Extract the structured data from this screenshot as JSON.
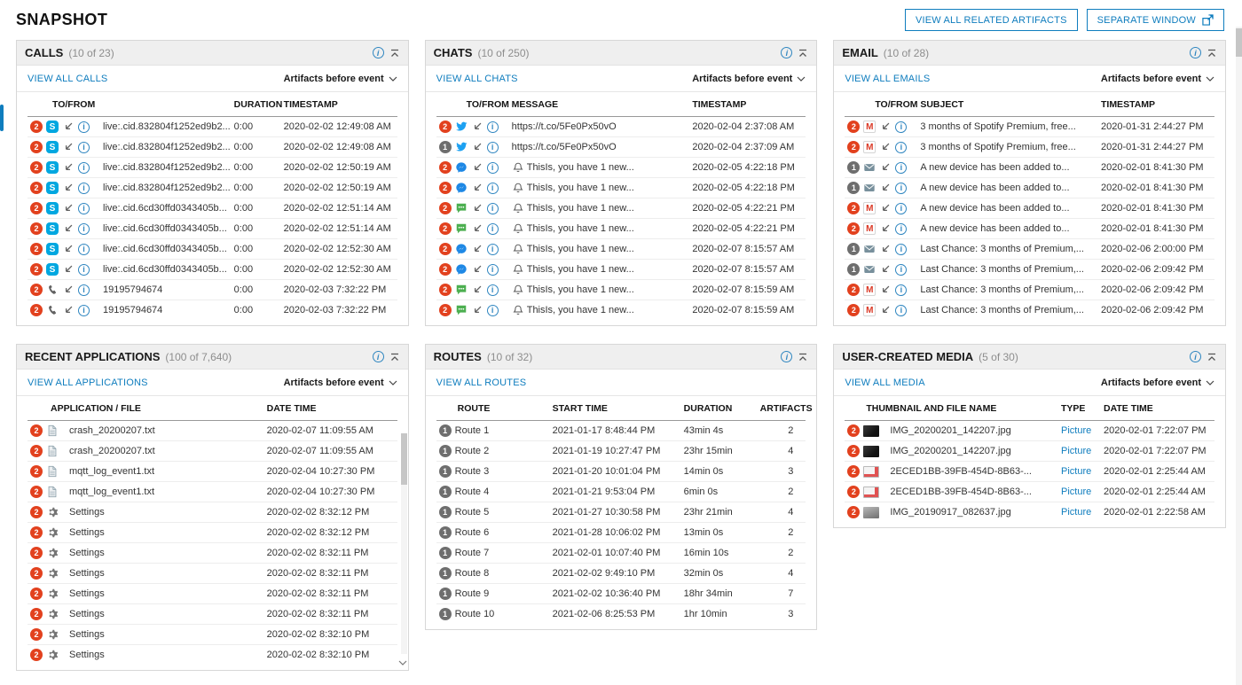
{
  "colors": {
    "accent": "#0f7dbe",
    "badge_red": "#e2411e",
    "badge_gray": "#6e6e6e",
    "link_blue": "#0f7dbe"
  },
  "icons": {
    "info": "i-in-circle",
    "collapse": "chevron-up-with-bar",
    "chevron_down": "v-chevron",
    "incoming_arrow": "arrow-down-left",
    "separate_window": "window-with-arrow",
    "bell": "bell-outline"
  },
  "page": {
    "title": "SNAPSHOT",
    "buttons": {
      "view_all_related": "VIEW ALL RELATED ARTIFACTS",
      "separate_window": "SEPARATE WINDOW"
    }
  },
  "panels": {
    "calls": {
      "title": "CALLS",
      "count": "(10 of 23)",
      "view_all": "VIEW ALL CALLS",
      "filter": "Artifacts before event",
      "columns": [
        "TO/FROM",
        "DURATION",
        "TIMESTAMP"
      ],
      "rows": [
        {
          "badge": 2,
          "badge_color": "red",
          "source": "skype",
          "to_from": "live:.cid.832804f1252ed9b2...",
          "duration": "0:00",
          "timestamp": "2020-02-02 12:49:08 AM"
        },
        {
          "badge": 2,
          "badge_color": "red",
          "source": "skype",
          "to_from": "live:.cid.832804f1252ed9b2...",
          "duration": "0:00",
          "timestamp": "2020-02-02 12:49:08 AM"
        },
        {
          "badge": 2,
          "badge_color": "red",
          "source": "skype",
          "to_from": "live:.cid.832804f1252ed9b2...",
          "duration": "0:00",
          "timestamp": "2020-02-02 12:50:19 AM"
        },
        {
          "badge": 2,
          "badge_color": "red",
          "source": "skype",
          "to_from": "live:.cid.832804f1252ed9b2...",
          "duration": "0:00",
          "timestamp": "2020-02-02 12:50:19 AM"
        },
        {
          "badge": 2,
          "badge_color": "red",
          "source": "skype",
          "to_from": "live:.cid.6cd30ffd0343405b...",
          "duration": "0:00",
          "timestamp": "2020-02-02 12:51:14 AM"
        },
        {
          "badge": 2,
          "badge_color": "red",
          "source": "skype",
          "to_from": "live:.cid.6cd30ffd0343405b...",
          "duration": "0:00",
          "timestamp": "2020-02-02 12:51:14 AM"
        },
        {
          "badge": 2,
          "badge_color": "red",
          "source": "skype",
          "to_from": "live:.cid.6cd30ffd0343405b...",
          "duration": "0:00",
          "timestamp": "2020-02-02 12:52:30 AM"
        },
        {
          "badge": 2,
          "badge_color": "red",
          "source": "skype",
          "to_from": "live:.cid.6cd30ffd0343405b...",
          "duration": "0:00",
          "timestamp": "2020-02-02 12:52:30 AM"
        },
        {
          "badge": 2,
          "badge_color": "red",
          "source": "phone",
          "to_from": "19195794674",
          "duration": "0:00",
          "timestamp": "2020-02-03 7:32:22 PM"
        },
        {
          "badge": 2,
          "badge_color": "red",
          "source": "phone",
          "to_from": "19195794674",
          "duration": "0:00",
          "timestamp": "2020-02-03 7:32:22 PM"
        }
      ]
    },
    "chats": {
      "title": "CHATS",
      "count": "(10 of 250)",
      "view_all": "VIEW ALL CHATS",
      "filter": "Artifacts before event",
      "columns": [
        "TO/FROM",
        "MESSAGE",
        "TIMESTAMP"
      ],
      "rows": [
        {
          "badge": 2,
          "badge_color": "red",
          "source": "twitter",
          "bell": false,
          "message": "https://t.co/5Fe0Px50vO",
          "timestamp": "2020-02-04 2:37:08 AM"
        },
        {
          "badge": 1,
          "badge_color": "gray",
          "source": "twitter",
          "bell": false,
          "message": "https://t.co/5Fe0Px50vO",
          "timestamp": "2020-02-04 2:37:09 AM"
        },
        {
          "badge": 2,
          "badge_color": "red",
          "source": "messenger",
          "bell": true,
          "message": "ThisIs, you have 1 new...",
          "timestamp": "2020-02-05 4:22:18 PM"
        },
        {
          "badge": 2,
          "badge_color": "red",
          "source": "messenger",
          "bell": true,
          "message": "ThisIs, you have 1 new...",
          "timestamp": "2020-02-05 4:22:18 PM"
        },
        {
          "badge": 2,
          "badge_color": "red",
          "source": "chat-green",
          "bell": true,
          "message": "ThisIs, you have 1 new...",
          "timestamp": "2020-02-05 4:22:21 PM"
        },
        {
          "badge": 2,
          "badge_color": "red",
          "source": "chat-green",
          "bell": true,
          "message": "ThisIs, you have 1 new...",
          "timestamp": "2020-02-05 4:22:21 PM"
        },
        {
          "badge": 2,
          "badge_color": "red",
          "source": "messenger",
          "bell": true,
          "message": "ThisIs, you have 1 new...",
          "timestamp": "2020-02-07 8:15:57 AM"
        },
        {
          "badge": 2,
          "badge_color": "red",
          "source": "messenger",
          "bell": true,
          "message": "ThisIs, you have 1 new...",
          "timestamp": "2020-02-07 8:15:57 AM"
        },
        {
          "badge": 2,
          "badge_color": "red",
          "source": "chat-green",
          "bell": true,
          "message": "ThisIs, you have 1 new...",
          "timestamp": "2020-02-07 8:15:59 AM"
        },
        {
          "badge": 2,
          "badge_color": "red",
          "source": "chat-green",
          "bell": true,
          "message": "ThisIs, you have 1 new...",
          "timestamp": "2020-02-07 8:15:59 AM"
        }
      ]
    },
    "email": {
      "title": "EMAIL",
      "count": "(10 of 28)",
      "view_all": "VIEW ALL EMAILS",
      "filter": "Artifacts before event",
      "columns": [
        "TO/FROM",
        "SUBJECT",
        "TIMESTAMP"
      ],
      "rows": [
        {
          "badge": 2,
          "badge_color": "red",
          "source": "gmail",
          "subject": "3 months of Spotify Premium, free...",
          "timestamp": "2020-01-31 2:44:27 PM"
        },
        {
          "badge": 2,
          "badge_color": "red",
          "source": "gmail",
          "subject": "3 months of Spotify Premium, free...",
          "timestamp": "2020-01-31 2:44:27 PM"
        },
        {
          "badge": 1,
          "badge_color": "gray",
          "source": "mail",
          "subject": "A new device has been added to...",
          "timestamp": "2020-02-01 8:41:30 PM"
        },
        {
          "badge": 1,
          "badge_color": "gray",
          "source": "mail",
          "subject": "A new device has been added to...",
          "timestamp": "2020-02-01 8:41:30 PM"
        },
        {
          "badge": 2,
          "badge_color": "red",
          "source": "gmail",
          "subject": "A new device has been added to...",
          "timestamp": "2020-02-01 8:41:30 PM"
        },
        {
          "badge": 2,
          "badge_color": "red",
          "source": "gmail",
          "subject": "A new device has been added to...",
          "timestamp": "2020-02-01 8:41:30 PM"
        },
        {
          "badge": 1,
          "badge_color": "gray",
          "source": "mail",
          "subject": "Last Chance: 3 months of Premium,...",
          "timestamp": "2020-02-06 2:00:00 PM"
        },
        {
          "badge": 1,
          "badge_color": "gray",
          "source": "mail",
          "subject": "Last Chance: 3 months of Premium,...",
          "timestamp": "2020-02-06 2:09:42 PM"
        },
        {
          "badge": 2,
          "badge_color": "red",
          "source": "gmail",
          "subject": "Last Chance: 3 months of Premium,...",
          "timestamp": "2020-02-06 2:09:42 PM"
        },
        {
          "badge": 2,
          "badge_color": "red",
          "source": "gmail",
          "subject": "Last Chance: 3 months of Premium,...",
          "timestamp": "2020-02-06 2:09:42 PM"
        }
      ]
    },
    "apps": {
      "title": "RECENT APPLICATIONS",
      "count": "(100 of 7,640)",
      "view_all": "VIEW ALL APPLICATIONS",
      "filter": "Artifacts before event",
      "columns": [
        "APPLICATION / FILE",
        "DATE TIME"
      ],
      "rows": [
        {
          "badge": 2,
          "badge_color": "red",
          "icon": "file",
          "name": "crash_20200207.txt",
          "timestamp": "2020-02-07 11:09:55 AM"
        },
        {
          "badge": 2,
          "badge_color": "red",
          "icon": "file",
          "name": "crash_20200207.txt",
          "timestamp": "2020-02-07 11:09:55 AM"
        },
        {
          "badge": 2,
          "badge_color": "red",
          "icon": "file",
          "name": "mqtt_log_event1.txt",
          "timestamp": "2020-02-04 10:27:30 PM"
        },
        {
          "badge": 2,
          "badge_color": "red",
          "icon": "file",
          "name": "mqtt_log_event1.txt",
          "timestamp": "2020-02-04 10:27:30 PM"
        },
        {
          "badge": 2,
          "badge_color": "red",
          "icon": "gear",
          "name": "Settings",
          "timestamp": "2020-02-02 8:32:12 PM"
        },
        {
          "badge": 2,
          "badge_color": "red",
          "icon": "gear",
          "name": "Settings",
          "timestamp": "2020-02-02 8:32:12 PM"
        },
        {
          "badge": 2,
          "badge_color": "red",
          "icon": "gear",
          "name": "Settings",
          "timestamp": "2020-02-02 8:32:11 PM"
        },
        {
          "badge": 2,
          "badge_color": "red",
          "icon": "gear",
          "name": "Settings",
          "timestamp": "2020-02-02 8:32:11 PM"
        },
        {
          "badge": 2,
          "badge_color": "red",
          "icon": "gear",
          "name": "Settings",
          "timestamp": "2020-02-02 8:32:11 PM"
        },
        {
          "badge": 2,
          "badge_color": "red",
          "icon": "gear",
          "name": "Settings",
          "timestamp": "2020-02-02 8:32:11 PM"
        },
        {
          "badge": 2,
          "badge_color": "red",
          "icon": "gear",
          "name": "Settings",
          "timestamp": "2020-02-02 8:32:10 PM"
        },
        {
          "badge": 2,
          "badge_color": "red",
          "icon": "gear",
          "name": "Settings",
          "timestamp": "2020-02-02 8:32:10 PM"
        }
      ]
    },
    "routes": {
      "title": "ROUTES",
      "count": "(10 of 32)",
      "view_all": "VIEW ALL ROUTES",
      "columns": [
        "ROUTE",
        "START TIME",
        "DURATION",
        "ARTIFACTS"
      ],
      "rows": [
        {
          "badge": 1,
          "badge_color": "gray",
          "name": "Route 1",
          "start": "2021-01-17 8:48:44 PM",
          "duration": "43min 4s",
          "artifacts": 2
        },
        {
          "badge": 1,
          "badge_color": "gray",
          "name": "Route 2",
          "start": "2021-01-19 10:27:47 PM",
          "duration": "23hr 15min",
          "artifacts": 4
        },
        {
          "badge": 1,
          "badge_color": "gray",
          "name": "Route 3",
          "start": "2021-01-20 10:01:04 PM",
          "duration": "14min 0s",
          "artifacts": 3
        },
        {
          "badge": 1,
          "badge_color": "gray",
          "name": "Route 4",
          "start": "2021-01-21 9:53:04 PM",
          "duration": "6min 0s",
          "artifacts": 2
        },
        {
          "badge": 1,
          "badge_color": "gray",
          "name": "Route 5",
          "start": "2021-01-27 10:30:58 PM",
          "duration": "23hr 21min",
          "artifacts": 4
        },
        {
          "badge": 1,
          "badge_color": "gray",
          "name": "Route 6",
          "start": "2021-01-28 10:06:02 PM",
          "duration": "13min 0s",
          "artifacts": 2
        },
        {
          "badge": 1,
          "badge_color": "gray",
          "name": "Route 7",
          "start": "2021-02-01 10:07:40 PM",
          "duration": "16min 10s",
          "artifacts": 2
        },
        {
          "badge": 1,
          "badge_color": "gray",
          "name": "Route 8",
          "start": "2021-02-02 9:49:10 PM",
          "duration": "32min 0s",
          "artifacts": 4
        },
        {
          "badge": 1,
          "badge_color": "gray",
          "name": "Route 9",
          "start": "2021-02-02 10:36:40 PM",
          "duration": "18hr 34min",
          "artifacts": 7
        },
        {
          "badge": 1,
          "badge_color": "gray",
          "name": "Route 10",
          "start": "2021-02-06 8:25:53 PM",
          "duration": "1hr 10min",
          "artifacts": 3
        }
      ]
    },
    "media": {
      "title": "USER-CREATED MEDIA",
      "count": "(5 of 30)",
      "view_all": "VIEW ALL MEDIA",
      "filter": "Artifacts before event",
      "columns": [
        "THUMBNAIL AND FILE NAME",
        "TYPE",
        "DATE TIME"
      ],
      "rows": [
        {
          "badge": 2,
          "badge_color": "red",
          "thumb": "t-dark",
          "name": "IMG_20200201_142207.jpg",
          "type": "Picture",
          "timestamp": "2020-02-01 7:22:07 PM"
        },
        {
          "badge": 2,
          "badge_color": "red",
          "thumb": "t-dark",
          "name": "IMG_20200201_142207.jpg",
          "type": "Picture",
          "timestamp": "2020-02-01 7:22:07 PM"
        },
        {
          "badge": 2,
          "badge_color": "red",
          "thumb": "t-doc",
          "name": "2ECED1BB-39FB-454D-8B63-...",
          "type": "Picture",
          "timestamp": "2020-02-01 2:25:44 AM"
        },
        {
          "badge": 2,
          "badge_color": "red",
          "thumb": "t-doc",
          "name": "2ECED1BB-39FB-454D-8B63-...",
          "type": "Picture",
          "timestamp": "2020-02-01 2:25:44 AM"
        },
        {
          "badge": 2,
          "badge_color": "red",
          "thumb": "t-gray",
          "name": "IMG_20190917_082637.jpg",
          "type": "Picture",
          "timestamp": "2020-02-01 2:22:58 AM"
        }
      ]
    }
  }
}
